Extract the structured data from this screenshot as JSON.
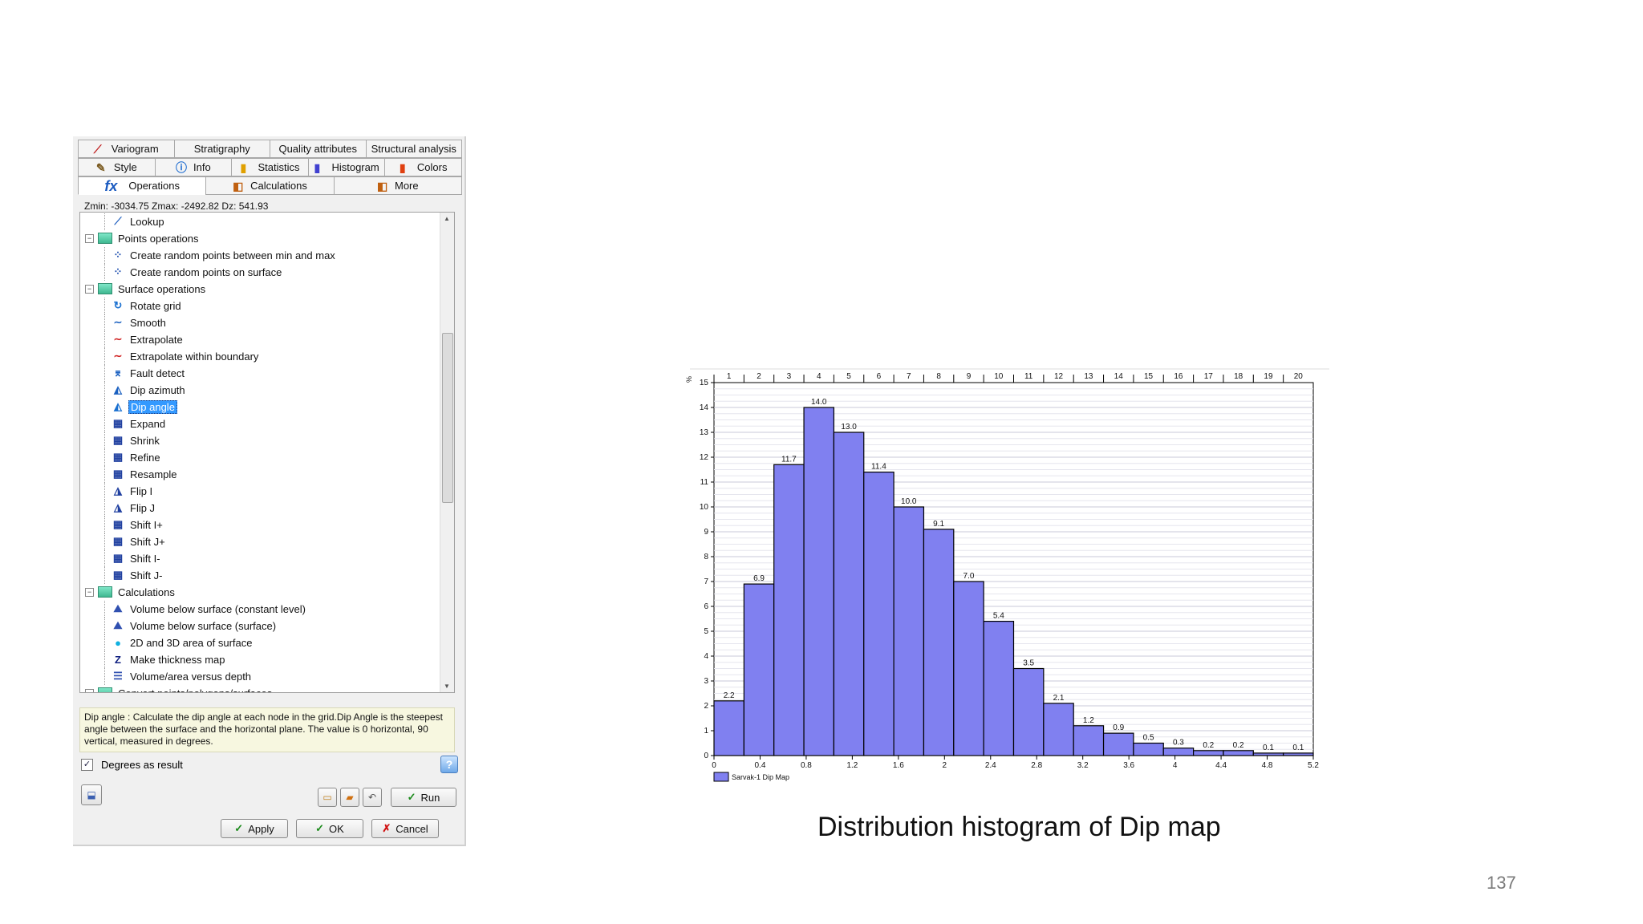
{
  "dialog": {
    "tabs_row1": [
      {
        "label": "Variogram",
        "icon": "variogram-icon"
      },
      {
        "label": "Stratigraphy",
        "icon": ""
      },
      {
        "label": "Quality attributes",
        "icon": ""
      },
      {
        "label": "Structural analysis",
        "icon": ""
      }
    ],
    "tabs_row2": [
      {
        "label": "Style",
        "icon": "brush-icon"
      },
      {
        "label": "Info",
        "icon": "info-icon"
      },
      {
        "label": "Statistics",
        "icon": "statistics-icon"
      },
      {
        "label": "Histogram",
        "icon": "histogram-icon"
      },
      {
        "label": "Colors",
        "icon": "colors-icon"
      }
    ],
    "tabs_row3": [
      {
        "label": "Operations",
        "icon": "fx-icon"
      },
      {
        "label": "Calculations",
        "icon": "calc-icon"
      },
      {
        "label": "More",
        "icon": "more-icon"
      }
    ],
    "zline": "Zmin: -3034.75   Zmax: -2492.82   Dz: 541.93",
    "tree": [
      {
        "level": 2,
        "label": "Lookup",
        "icon": "lookup-icon"
      },
      {
        "level": 1,
        "label": "Points operations",
        "folder": true,
        "expanded": true
      },
      {
        "level": 2,
        "label": "Create random points between min and max",
        "icon": "random-points-icon"
      },
      {
        "level": 2,
        "label": "Create random points on surface",
        "icon": "random-points-icon"
      },
      {
        "level": 1,
        "label": "Surface operations",
        "folder": true,
        "expanded": true
      },
      {
        "level": 2,
        "label": "Rotate grid",
        "icon": "rotate-icon"
      },
      {
        "level": 2,
        "label": "Smooth",
        "icon": "smooth-icon"
      },
      {
        "level": 2,
        "label": "Extrapolate",
        "icon": "extrapolate-icon"
      },
      {
        "level": 2,
        "label": "Extrapolate within boundary",
        "icon": "extrapolate-icon"
      },
      {
        "level": 2,
        "label": "Fault detect",
        "icon": "fault-icon"
      },
      {
        "level": 2,
        "label": "Dip azimuth",
        "icon": "dip-azimuth-icon"
      },
      {
        "level": 2,
        "label": "Dip angle",
        "icon": "dip-angle-icon",
        "selected": true
      },
      {
        "level": 2,
        "label": "Expand",
        "icon": "grid-icon"
      },
      {
        "level": 2,
        "label": "Shrink",
        "icon": "grid-icon"
      },
      {
        "level": 2,
        "label": "Refine",
        "icon": "grid-icon"
      },
      {
        "level": 2,
        "label": "Resample",
        "icon": "grid-icon"
      },
      {
        "level": 2,
        "label": "Flip I",
        "icon": "flip-icon"
      },
      {
        "level": 2,
        "label": "Flip J",
        "icon": "flip-icon"
      },
      {
        "level": 2,
        "label": "Shift I+",
        "icon": "grid-icon"
      },
      {
        "level": 2,
        "label": "Shift J+",
        "icon": "grid-icon"
      },
      {
        "level": 2,
        "label": "Shift I-",
        "icon": "grid-icon"
      },
      {
        "level": 2,
        "label": "Shift J-",
        "icon": "grid-icon"
      },
      {
        "level": 1,
        "label": "Calculations",
        "folder": true,
        "expanded": true
      },
      {
        "level": 2,
        "label": "Volume below surface (constant level)",
        "icon": "volume-icon"
      },
      {
        "level": 2,
        "label": "Volume below surface (surface)",
        "icon": "volume-icon"
      },
      {
        "level": 2,
        "label": "2D and 3D area of surface",
        "icon": "area-icon"
      },
      {
        "level": 2,
        "label": "Make thickness map",
        "icon": "thickness-icon"
      },
      {
        "level": 2,
        "label": "Volume/area versus depth",
        "icon": "volume-depth-icon"
      },
      {
        "level": 1,
        "label": "Convert points/polygons/surfaces",
        "folder": true,
        "expanded": true
      }
    ],
    "description": "Dip angle : Calculate the dip angle at each node in the grid.Dip Angle is the steepest angle between the surface and the horizontal plane. The value is 0 horizontal, 90 vertical, measured in degrees.",
    "degrees_label": "Degrees as result",
    "degrees_checked": true,
    "run_label": "Run",
    "apply_label": "Apply",
    "ok_label": "OK",
    "cancel_label": "Cancel"
  },
  "chart_data": {
    "type": "bar",
    "bin_width": 0.26,
    "x_start": 0,
    "values": [
      2.2,
      6.9,
      11.7,
      14.0,
      13.0,
      11.4,
      10.0,
      9.1,
      7.0,
      5.4,
      3.5,
      2.1,
      1.2,
      0.9,
      0.5,
      0.3,
      0.2,
      0.2,
      0.1,
      0.1
    ],
    "value_labels": [
      "2.2",
      "6.9",
      "11.7",
      "14.0",
      "13.0",
      "11.4",
      "10.0",
      "9.1",
      "7.0",
      "5.4",
      "3.5",
      "2.1",
      "1.2",
      "0.9",
      "0.5",
      "0.3",
      "0.2",
      "0.2",
      "0.1",
      "0.1"
    ],
    "bin_numbers": [
      "1",
      "2",
      "3",
      "4",
      "5",
      "6",
      "7",
      "8",
      "9",
      "10",
      "11",
      "12",
      "13",
      "14",
      "15",
      "16",
      "17",
      "18",
      "19",
      "20"
    ],
    "x_ticks": [
      "0",
      "0.4",
      "0.8",
      "1.2",
      "1.6",
      "2",
      "2.4",
      "2.8",
      "3.2",
      "3.6",
      "4",
      "4.4",
      "4.8",
      "5.2"
    ],
    "y_ticks": [
      "0",
      "1",
      "2",
      "3",
      "4",
      "5",
      "6",
      "7",
      "8",
      "9",
      "10",
      "11",
      "12",
      "13",
      "14",
      "15"
    ],
    "ylim": [
      0,
      15
    ],
    "xlim": [
      0,
      5.2
    ],
    "y_axis_label": "%",
    "legend": "Sarvak-1 Dip Map",
    "legend_position": "bottom-left",
    "bar_color": "#8080f0",
    "grid": true
  },
  "caption": "Distribution histogram of Dip map",
  "page_number": "137"
}
